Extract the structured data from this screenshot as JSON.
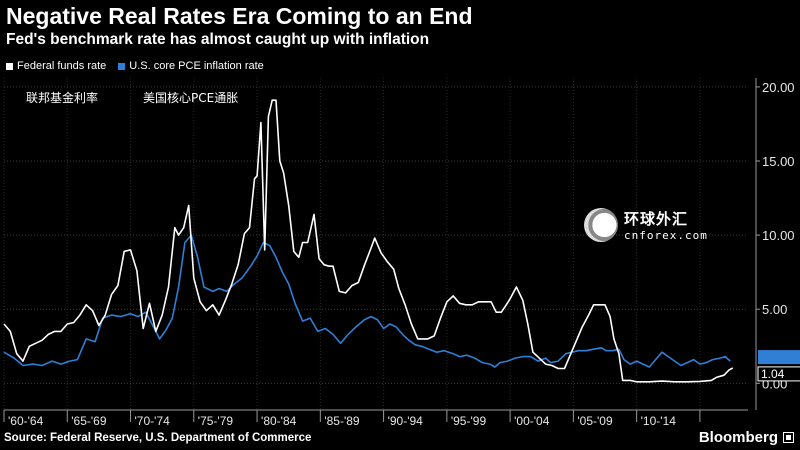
{
  "title": "Negative Real Rates Era Coming to an End",
  "subtitle": "Fed's benchmark rate has almost caught up with inflation",
  "legend": [
    {
      "label": "Federal funds rate",
      "color": "#ffffff"
    },
    {
      "label": "U.S. core PCE inflation rate",
      "color": "#2f7fd6"
    }
  ],
  "annotations": {
    "fed_cn": "联邦基金利率",
    "pce_cn": "美国核心PCE通胀"
  },
  "source": "Source: Federal Reserve, U.S. Department of Commerce",
  "brand": "Bloomberg",
  "watermark": {
    "cn": "环球外汇",
    "en": "cnforex.com"
  },
  "chart_data": {
    "type": "line",
    "ylim": [
      -1.8,
      20.6
    ],
    "xlim": [
      1960.0,
      2018.8
    ],
    "yticks": [
      0,
      5,
      10,
      15,
      20
    ],
    "ytick_labels": [
      "0.00",
      "5.00",
      "10.00",
      "15.00",
      "20.00"
    ],
    "xticks": [
      "'60-'64",
      "'65-'69",
      "'70-'74",
      "'75-'79",
      "'80-'84",
      "'85-'89",
      "'90-'94",
      "'95-'99",
      "'00-'04",
      "'05-'09",
      "'10-'14"
    ],
    "grid": true,
    "legend_position": "top-left",
    "last_value_labels": [
      {
        "series": "Federal funds rate",
        "label": "1.04",
        "value": 1.04
      },
      {
        "series": "U.S. core PCE inflation rate",
        "label": "1.5",
        "value": 1.5
      }
    ],
    "series": [
      {
        "name": "Federal funds rate",
        "color": "#ffffff",
        "points": [
          [
            1960.0,
            4.0
          ],
          [
            1960.5,
            3.5
          ],
          [
            1961.0,
            2.0
          ],
          [
            1961.5,
            1.5
          ],
          [
            1962.0,
            2.5
          ],
          [
            1962.5,
            2.7
          ],
          [
            1963.0,
            2.9
          ],
          [
            1963.5,
            3.3
          ],
          [
            1964.0,
            3.5
          ],
          [
            1964.5,
            3.5
          ],
          [
            1965.0,
            4.0
          ],
          [
            1965.5,
            4.1
          ],
          [
            1966.0,
            4.6
          ],
          [
            1966.5,
            5.3
          ],
          [
            1967.0,
            4.9
          ],
          [
            1967.5,
            3.9
          ],
          [
            1968.0,
            4.6
          ],
          [
            1968.5,
            6.0
          ],
          [
            1969.0,
            6.6
          ],
          [
            1969.5,
            8.9
          ],
          [
            1970.0,
            9.0
          ],
          [
            1970.5,
            7.6
          ],
          [
            1971.0,
            3.7
          ],
          [
            1971.5,
            5.4
          ],
          [
            1972.0,
            3.5
          ],
          [
            1972.5,
            4.6
          ],
          [
            1973.0,
            6.5
          ],
          [
            1973.5,
            10.5
          ],
          [
            1973.8,
            10.0
          ],
          [
            1974.2,
            10.5
          ],
          [
            1974.6,
            12.0
          ],
          [
            1975.0,
            7.1
          ],
          [
            1975.5,
            5.5
          ],
          [
            1976.0,
            4.9
          ],
          [
            1976.5,
            5.3
          ],
          [
            1977.0,
            4.6
          ],
          [
            1977.5,
            5.6
          ],
          [
            1978.0,
            6.7
          ],
          [
            1978.5,
            8.0
          ],
          [
            1979.0,
            10.1
          ],
          [
            1979.4,
            10.5
          ],
          [
            1979.8,
            13.8
          ],
          [
            1980.0,
            14.0
          ],
          [
            1980.3,
            17.6
          ],
          [
            1980.6,
            9.0
          ],
          [
            1980.9,
            18.0
          ],
          [
            1981.2,
            19.1
          ],
          [
            1981.5,
            19.1
          ],
          [
            1981.8,
            15.0
          ],
          [
            1982.1,
            14.2
          ],
          [
            1982.5,
            12.0
          ],
          [
            1982.9,
            8.9
          ],
          [
            1983.3,
            8.5
          ],
          [
            1983.6,
            9.5
          ],
          [
            1984.0,
            9.5
          ],
          [
            1984.5,
            11.4
          ],
          [
            1984.9,
            8.4
          ],
          [
            1985.3,
            8.0
          ],
          [
            1985.7,
            7.9
          ],
          [
            1986.0,
            7.9
          ],
          [
            1986.5,
            6.2
          ],
          [
            1987.0,
            6.1
          ],
          [
            1987.5,
            6.6
          ],
          [
            1988.0,
            6.8
          ],
          [
            1988.5,
            8.0
          ],
          [
            1989.0,
            9.1
          ],
          [
            1989.3,
            9.8
          ],
          [
            1989.8,
            8.8
          ],
          [
            1990.3,
            8.2
          ],
          [
            1990.8,
            7.7
          ],
          [
            1991.2,
            6.4
          ],
          [
            1991.7,
            5.3
          ],
          [
            1992.2,
            4.0
          ],
          [
            1992.7,
            3.0
          ],
          [
            1993.0,
            3.0
          ],
          [
            1993.5,
            3.0
          ],
          [
            1994.0,
            3.2
          ],
          [
            1994.5,
            4.4
          ],
          [
            1995.0,
            5.5
          ],
          [
            1995.5,
            5.9
          ],
          [
            1996.0,
            5.4
          ],
          [
            1996.5,
            5.3
          ],
          [
            1997.0,
            5.3
          ],
          [
            1997.5,
            5.5
          ],
          [
            1998.0,
            5.5
          ],
          [
            1998.5,
            5.5
          ],
          [
            1998.9,
            4.8
          ],
          [
            1999.3,
            4.8
          ],
          [
            1999.7,
            5.3
          ],
          [
            2000.0,
            5.7
          ],
          [
            2000.5,
            6.5
          ],
          [
            2001.0,
            5.6
          ],
          [
            2001.4,
            4.0
          ],
          [
            2001.8,
            2.1
          ],
          [
            2002.3,
            1.7
          ],
          [
            2002.8,
            1.3
          ],
          [
            2003.3,
            1.2
          ],
          [
            2003.8,
            1.0
          ],
          [
            2004.3,
            1.0
          ],
          [
            2004.7,
            1.8
          ],
          [
            2005.2,
            2.8
          ],
          [
            2005.7,
            3.8
          ],
          [
            2006.2,
            4.6
          ],
          [
            2006.6,
            5.3
          ],
          [
            2007.0,
            5.3
          ],
          [
            2007.5,
            5.3
          ],
          [
            2007.9,
            4.5
          ],
          [
            2008.2,
            3.0
          ],
          [
            2008.6,
            2.0
          ],
          [
            2008.9,
            0.2
          ],
          [
            2009.5,
            0.2
          ],
          [
            2010.0,
            0.1
          ],
          [
            2011.0,
            0.1
          ],
          [
            2012.0,
            0.15
          ],
          [
            2013.0,
            0.1
          ],
          [
            2014.0,
            0.1
          ],
          [
            2015.0,
            0.13
          ],
          [
            2015.9,
            0.2
          ],
          [
            2016.3,
            0.4
          ],
          [
            2016.9,
            0.55
          ],
          [
            2017.3,
            0.9
          ],
          [
            2017.6,
            1.04
          ]
        ]
      },
      {
        "name": "U.S. core PCE inflation rate",
        "color": "#2f7fd6",
        "points": [
          [
            1960.0,
            2.1
          ],
          [
            1960.8,
            1.7
          ],
          [
            1961.5,
            1.2
          ],
          [
            1962.3,
            1.3
          ],
          [
            1963.0,
            1.2
          ],
          [
            1963.8,
            1.5
          ],
          [
            1964.5,
            1.3
          ],
          [
            1965.2,
            1.5
          ],
          [
            1965.8,
            1.6
          ],
          [
            1966.5,
            3.0
          ],
          [
            1967.2,
            2.8
          ],
          [
            1967.8,
            4.4
          ],
          [
            1968.5,
            4.6
          ],
          [
            1969.2,
            4.5
          ],
          [
            1970.0,
            4.7
          ],
          [
            1970.6,
            4.5
          ],
          [
            1971.2,
            4.8
          ],
          [
            1971.7,
            4.0
          ],
          [
            1972.3,
            3.0
          ],
          [
            1972.8,
            3.6
          ],
          [
            1973.3,
            4.4
          ],
          [
            1973.8,
            6.5
          ],
          [
            1974.3,
            9.5
          ],
          [
            1974.8,
            10.0
          ],
          [
            1975.3,
            8.5
          ],
          [
            1975.8,
            6.5
          ],
          [
            1976.5,
            6.2
          ],
          [
            1977.0,
            6.4
          ],
          [
            1977.6,
            6.2
          ],
          [
            1978.2,
            6.7
          ],
          [
            1978.8,
            7.1
          ],
          [
            1979.5,
            7.9
          ],
          [
            1980.0,
            8.6
          ],
          [
            1980.5,
            9.5
          ],
          [
            1981.0,
            9.3
          ],
          [
            1981.5,
            8.5
          ],
          [
            1982.0,
            7.5
          ],
          [
            1982.5,
            6.7
          ],
          [
            1983.0,
            5.4
          ],
          [
            1983.6,
            4.2
          ],
          [
            1984.2,
            4.4
          ],
          [
            1984.8,
            3.5
          ],
          [
            1985.4,
            3.7
          ],
          [
            1986.0,
            3.3
          ],
          [
            1986.6,
            2.7
          ],
          [
            1987.2,
            3.3
          ],
          [
            1987.8,
            3.8
          ],
          [
            1988.5,
            4.3
          ],
          [
            1989.0,
            4.5
          ],
          [
            1989.5,
            4.3
          ],
          [
            1990.0,
            3.7
          ],
          [
            1990.5,
            4.0
          ],
          [
            1991.0,
            3.8
          ],
          [
            1991.5,
            3.3
          ],
          [
            1992.0,
            2.9
          ],
          [
            1992.5,
            2.6
          ],
          [
            1993.0,
            2.5
          ],
          [
            1993.6,
            2.3
          ],
          [
            1994.2,
            2.1
          ],
          [
            1994.8,
            2.2
          ],
          [
            1995.5,
            2.0
          ],
          [
            1996.0,
            1.8
          ],
          [
            1996.6,
            1.9
          ],
          [
            1997.2,
            1.7
          ],
          [
            1997.8,
            1.4
          ],
          [
            1998.4,
            1.3
          ],
          [
            1998.8,
            1.1
          ],
          [
            1999.2,
            1.4
          ],
          [
            1999.8,
            1.5
          ],
          [
            2000.4,
            1.7
          ],
          [
            2001.0,
            1.8
          ],
          [
            2001.6,
            1.8
          ],
          [
            2002.2,
            1.5
          ],
          [
            2002.8,
            1.7
          ],
          [
            2003.2,
            1.4
          ],
          [
            2003.8,
            1.5
          ],
          [
            2004.4,
            2.0
          ],
          [
            2004.9,
            2.1
          ],
          [
            2005.4,
            2.2
          ],
          [
            2006.0,
            2.2
          ],
          [
            2006.6,
            2.3
          ],
          [
            2007.2,
            2.4
          ],
          [
            2007.6,
            2.2
          ],
          [
            2008.1,
            2.2
          ],
          [
            2008.6,
            2.3
          ],
          [
            2009.0,
            1.6
          ],
          [
            2009.5,
            1.3
          ],
          [
            2010.0,
            1.5
          ],
          [
            2010.5,
            1.3
          ],
          [
            2011.0,
            1.1
          ],
          [
            2011.5,
            1.6
          ],
          [
            2012.0,
            2.1
          ],
          [
            2012.5,
            1.8
          ],
          [
            2013.0,
            1.5
          ],
          [
            2013.5,
            1.2
          ],
          [
            2014.0,
            1.4
          ],
          [
            2014.5,
            1.6
          ],
          [
            2015.0,
            1.3
          ],
          [
            2015.5,
            1.4
          ],
          [
            2016.0,
            1.6
          ],
          [
            2016.6,
            1.7
          ],
          [
            2017.0,
            1.8
          ],
          [
            2017.4,
            1.5
          ]
        ]
      }
    ]
  }
}
